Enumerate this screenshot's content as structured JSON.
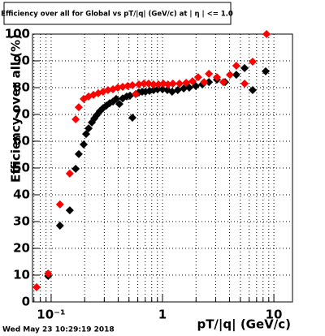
{
  "chart_data": {
    "type": "scatter",
    "title": "Efficiency over all for Global vs pT/|q| (GeV/c) at | η | <= 1.0",
    "x_label": "pT/|q| (GeV/c)",
    "y_label": "Efficiency over all (%)",
    "timestamp": "Wed May 23 10:29:19 2018",
    "xlog": true,
    "grid": true,
    "xlim": [
      0.068,
      14.7
    ],
    "ylim": [
      0,
      100
    ],
    "xticks": [
      {
        "value": 0.1,
        "label": "10⁻¹"
      },
      1,
      10
    ],
    "xminor": [
      0.07,
      0.08,
      0.09,
      0.2,
      0.3,
      0.4,
      0.5,
      0.6,
      0.7,
      0.8,
      0.9,
      2,
      3,
      4,
      5,
      6,
      7,
      8,
      9
    ],
    "yticks": [
      0,
      10,
      20,
      30,
      40,
      50,
      60,
      70,
      80,
      90,
      100
    ],
    "series": [
      {
        "color": "#000000",
        "x": [
          0.094,
          0.12,
          0.147,
          0.166,
          0.177,
          0.196,
          0.206,
          0.217,
          0.232,
          0.244,
          0.256,
          0.274,
          0.293,
          0.313,
          0.335,
          0.359,
          0.384,
          0.41,
          0.439,
          0.477,
          0.511,
          0.537,
          0.574,
          0.614,
          0.657,
          0.703,
          0.764,
          0.831,
          0.904,
          1,
          1.106,
          1.22,
          1.37,
          1.55,
          1.74,
          1.99,
          2.28,
          2.61,
          3.08,
          3.65,
          4.6,
          5.46,
          6.45,
          8.44
        ],
        "values": [
          9.7,
          28.5,
          34.2,
          49.7,
          55.2,
          58.8,
          62.7,
          64.8,
          67,
          68.5,
          69.7,
          71.2,
          72.4,
          73.3,
          74.2,
          74.8,
          75.8,
          73.9,
          76,
          76.7,
          77,
          68.8,
          77.6,
          78.2,
          78.5,
          78.5,
          78.8,
          79.1,
          79.4,
          79.4,
          79.1,
          78.5,
          79.1,
          79.7,
          80,
          80.6,
          81.2,
          82.1,
          83,
          82.1,
          84.8,
          87.3,
          79.1,
          86.1
        ]
      },
      {
        "color": "#ff0000",
        "x": [
          0.074,
          0.094,
          0.12,
          0.147,
          0.166,
          0.177,
          0.196,
          0.217,
          0.24,
          0.265,
          0.293,
          0.324,
          0.359,
          0.397,
          0.439,
          0.486,
          0.537,
          0.574,
          0.614,
          0.68,
          0.751,
          0.831,
          0.92,
          1.017,
          1.12,
          1.24,
          1.42,
          1.63,
          1.86,
          2.09,
          2.36,
          2.61,
          3.08,
          3.52,
          4.03,
          4.6,
          5.46,
          6.45,
          8.6
        ],
        "values": [
          5.5,
          10.6,
          36.4,
          47.9,
          68.2,
          72.7,
          75.8,
          76.7,
          77.3,
          77.9,
          78.5,
          79.1,
          79.4,
          80,
          80.3,
          80.6,
          80.9,
          77.6,
          81.2,
          81.5,
          81.5,
          81.2,
          81.2,
          81.5,
          81.2,
          81.5,
          81.5,
          81.8,
          82.4,
          83.9,
          82.1,
          85.2,
          83.9,
          82.1,
          84.8,
          88.2,
          81.5,
          89.7,
          100
        ]
      }
    ]
  }
}
